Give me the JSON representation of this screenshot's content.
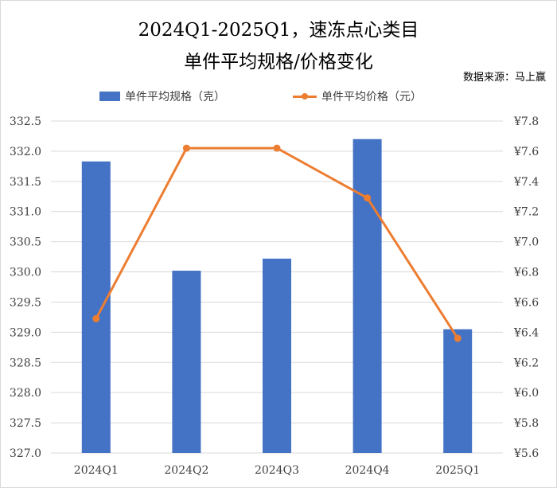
{
  "title_line1": "2024Q1-2025Q1，速冻点心类目",
  "title_line2": "单件平均规格/价格变化",
  "source": "数据来源：马上赢",
  "chart_data": {
    "type": "bar+line",
    "categories": [
      "2024Q1",
      "2024Q2",
      "2024Q3",
      "2024Q4",
      "2025Q1"
    ],
    "series": [
      {
        "name": "单件平均规格（克）",
        "type": "bar",
        "axis": "left",
        "values": [
          331.83,
          330.02,
          330.22,
          332.2,
          329.05
        ],
        "color": "#4472c4"
      },
      {
        "name": "单件平均价格（元）",
        "type": "line",
        "axis": "right",
        "values": [
          6.49,
          7.62,
          7.62,
          7.29,
          6.36
        ],
        "color": "#ed7d31"
      }
    ],
    "y_left": {
      "min": 327.0,
      "max": 332.5,
      "step": 0.5,
      "ticks": [
        "332.5",
        "332.0",
        "331.5",
        "331.0",
        "330.5",
        "330.0",
        "329.5",
        "329.0",
        "328.5",
        "328.0",
        "327.5",
        "327.0"
      ]
    },
    "y_right": {
      "min": 5.6,
      "max": 7.8,
      "step": 0.2,
      "ticks": [
        "¥7.8",
        "¥7.6",
        "¥7.4",
        "¥7.2",
        "¥7.0",
        "¥6.8",
        "¥6.6",
        "¥6.4",
        "¥6.2",
        "¥6.0",
        "¥5.8",
        "¥5.6"
      ]
    },
    "grid": true,
    "legend": "top"
  }
}
